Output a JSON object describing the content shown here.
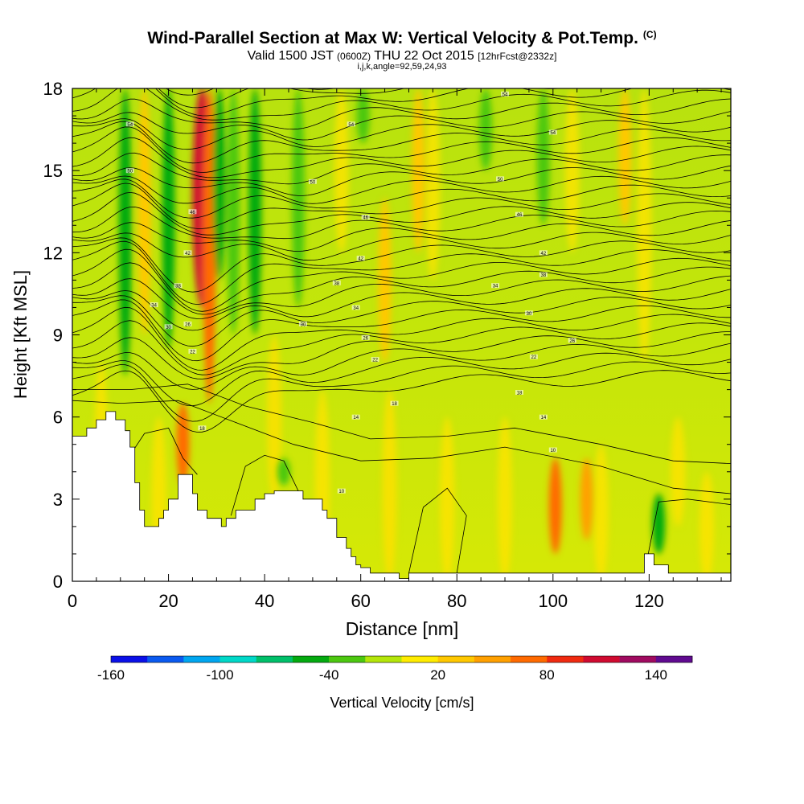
{
  "header": {
    "title": "Wind-Parallel Section at Max W: Vertical Velocity & Pot.Temp.",
    "title_note": "(C)",
    "valid_prefix": "Valid 1500 JST",
    "valid_utc": "(0600Z)",
    "valid_date": "THU 22 Oct 2015",
    "forecast": "[12hrFcst@2332z]",
    "indices": "i,j,k,angle=92,59,24,93"
  },
  "chart_data": {
    "type": "heatmap",
    "xlabel": "Distance [nm]",
    "ylabel": "Height [Kft MSL]",
    "xlim": [
      0,
      137
    ],
    "ylim": [
      0,
      18
    ],
    "x_ticks": [
      0,
      20,
      40,
      60,
      80,
      100,
      120
    ],
    "y_ticks": [
      0,
      3,
      6,
      9,
      12,
      15,
      18
    ],
    "colorbar": {
      "label": "Vertical Velocity [cm/s]",
      "range": [
        -160,
        160
      ],
      "tick_labels": [
        "-160",
        "-100",
        "-40",
        "20",
        "80",
        "140"
      ],
      "tick_values": [
        -160,
        -100,
        -40,
        20,
        80,
        140
      ],
      "colors": [
        "#0a10e8",
        "#0a5af0",
        "#00a6f0",
        "#00d8c8",
        "#00c06a",
        "#04aa10",
        "#4cc810",
        "#b4e60a",
        "#ffec00",
        "#ffc800",
        "#ffa000",
        "#ff6a00",
        "#f02a10",
        "#d00a30",
        "#a00a60",
        "#600a90"
      ]
    },
    "vertical_velocity_bands": [
      {
        "x": 11,
        "y_bottom": 7.5,
        "y_top": 18,
        "value": -60
      },
      {
        "x": 15,
        "y_bottom": 9,
        "y_top": 18,
        "value": 30
      },
      {
        "x": 20,
        "y_bottom": 8.5,
        "y_top": 18,
        "value": -45
      },
      {
        "x": 23,
        "y_bottom": 3.5,
        "y_top": 6.5,
        "value": 60
      },
      {
        "x": 27,
        "y_bottom": 10,
        "y_top": 18,
        "value": 110
      },
      {
        "x": 28.5,
        "y_bottom": 6.5,
        "y_top": 18,
        "value": 70
      },
      {
        "x": 30.5,
        "y_bottom": 11,
        "y_top": 18,
        "value": -55
      },
      {
        "x": 33.5,
        "y_bottom": 9,
        "y_top": 18,
        "value": -40
      },
      {
        "x": 38,
        "y_bottom": 9,
        "y_top": 18,
        "value": -45
      },
      {
        "x": 47,
        "y_bottom": 10,
        "y_top": 18,
        "value": -35
      },
      {
        "x": 60.5,
        "y_bottom": 16,
        "y_top": 18,
        "value": -40
      },
      {
        "x": 65,
        "y_bottom": 8,
        "y_top": 14,
        "value": 35
      },
      {
        "x": 72,
        "y_bottom": 12,
        "y_top": 18,
        "value": 25
      },
      {
        "x": 86,
        "y_bottom": 15,
        "y_top": 18,
        "value": -35
      },
      {
        "x": 98,
        "y_bottom": 13,
        "y_top": 18,
        "value": -30
      },
      {
        "x": 100.5,
        "y_bottom": 1,
        "y_top": 4.5,
        "value": 75
      },
      {
        "x": 107,
        "y_bottom": 1.5,
        "y_top": 4.5,
        "value": 45
      },
      {
        "x": 115,
        "y_bottom": 13,
        "y_top": 18,
        "value": 30
      },
      {
        "x": 122,
        "y_bottom": 1,
        "y_top": 3.2,
        "value": -45
      },
      {
        "x": 44,
        "y_bottom": 3.5,
        "y_top": 4.5,
        "value": -35
      }
    ],
    "terrain": {
      "x": [
        0,
        3,
        3,
        5,
        5,
        7,
        7,
        9,
        9,
        11,
        11,
        12,
        12,
        13,
        13,
        14,
        14,
        15,
        15,
        18,
        18,
        19,
        19,
        20,
        20,
        22,
        22,
        25,
        25,
        26,
        26,
        28,
        28,
        31,
        31,
        32,
        32,
        34,
        34,
        38,
        38,
        40,
        40,
        42,
        42,
        48,
        48,
        52,
        52,
        53,
        53,
        55,
        55,
        57,
        57,
        58,
        58,
        59,
        59,
        60,
        60,
        62,
        62,
        68,
        68,
        70,
        70,
        119,
        119,
        121,
        121,
        124,
        124,
        137
      ],
      "y": [
        5.3,
        5.3,
        5.6,
        5.6,
        5.9,
        5.9,
        6.2,
        6.2,
        5.9,
        5.9,
        5.5,
        5.5,
        4.9,
        4.9,
        3.6,
        3.6,
        2.6,
        2.6,
        2.0,
        2.0,
        2.3,
        2.3,
        2.6,
        2.6,
        3.0,
        3.0,
        3.9,
        3.9,
        3.2,
        3.2,
        2.6,
        2.6,
        2.3,
        2.3,
        2.0,
        2.0,
        2.3,
        2.3,
        2.6,
        2.6,
        3.0,
        3.0,
        3.2,
        3.2,
        3.3,
        3.3,
        3.0,
        3.0,
        2.6,
        2.6,
        2.3,
        2.3,
        1.6,
        1.6,
        1.2,
        1.2,
        0.9,
        0.9,
        0.6,
        0.6,
        0.5,
        0.5,
        0.3,
        0.3,
        0.1,
        0.1,
        0.3,
        0.3,
        1.0,
        1.0,
        0.6,
        0.6,
        0.3,
        0.3
      ]
    },
    "contour_labels": [
      {
        "x": 12,
        "y": 16.7,
        "text": "54"
      },
      {
        "x": 12,
        "y": 15.0,
        "text": "50"
      },
      {
        "x": 25,
        "y": 13.5,
        "text": "46"
      },
      {
        "x": 24,
        "y": 12.0,
        "text": "42"
      },
      {
        "x": 22,
        "y": 10.8,
        "text": "38"
      },
      {
        "x": 17,
        "y": 10.1,
        "text": "34"
      },
      {
        "x": 20,
        "y": 9.3,
        "text": "30"
      },
      {
        "x": 24,
        "y": 9.4,
        "text": "26"
      },
      {
        "x": 25,
        "y": 8.4,
        "text": "22"
      },
      {
        "x": 27,
        "y": 5.6,
        "text": "18"
      },
      {
        "x": 58,
        "y": 16.7,
        "text": "54"
      },
      {
        "x": 50,
        "y": 14.6,
        "text": "50"
      },
      {
        "x": 61,
        "y": 13.3,
        "text": "46"
      },
      {
        "x": 60,
        "y": 11.8,
        "text": "42"
      },
      {
        "x": 55,
        "y": 10.9,
        "text": "38"
      },
      {
        "x": 59,
        "y": 10.0,
        "text": "34"
      },
      {
        "x": 48,
        "y": 9.4,
        "text": "30"
      },
      {
        "x": 61,
        "y": 8.9,
        "text": "26"
      },
      {
        "x": 63,
        "y": 8.1,
        "text": "22"
      },
      {
        "x": 67,
        "y": 6.5,
        "text": "18"
      },
      {
        "x": 59,
        "y": 6.0,
        "text": "14"
      },
      {
        "x": 56,
        "y": 3.3,
        "text": "10"
      },
      {
        "x": 90,
        "y": 17.8,
        "text": "54"
      },
      {
        "x": 100,
        "y": 16.4,
        "text": "54"
      },
      {
        "x": 89,
        "y": 14.7,
        "text": "50"
      },
      {
        "x": 93,
        "y": 13.4,
        "text": "46"
      },
      {
        "x": 98,
        "y": 12.0,
        "text": "42"
      },
      {
        "x": 98,
        "y": 11.2,
        "text": "38"
      },
      {
        "x": 88,
        "y": 10.8,
        "text": "34"
      },
      {
        "x": 95,
        "y": 9.8,
        "text": "30"
      },
      {
        "x": 104,
        "y": 8.8,
        "text": "26"
      },
      {
        "x": 96,
        "y": 8.2,
        "text": "22"
      },
      {
        "x": 93,
        "y": 6.9,
        "text": "18"
      },
      {
        "x": 98,
        "y": 6.0,
        "text": "14"
      },
      {
        "x": 100,
        "y": 4.8,
        "text": "10"
      }
    ]
  }
}
